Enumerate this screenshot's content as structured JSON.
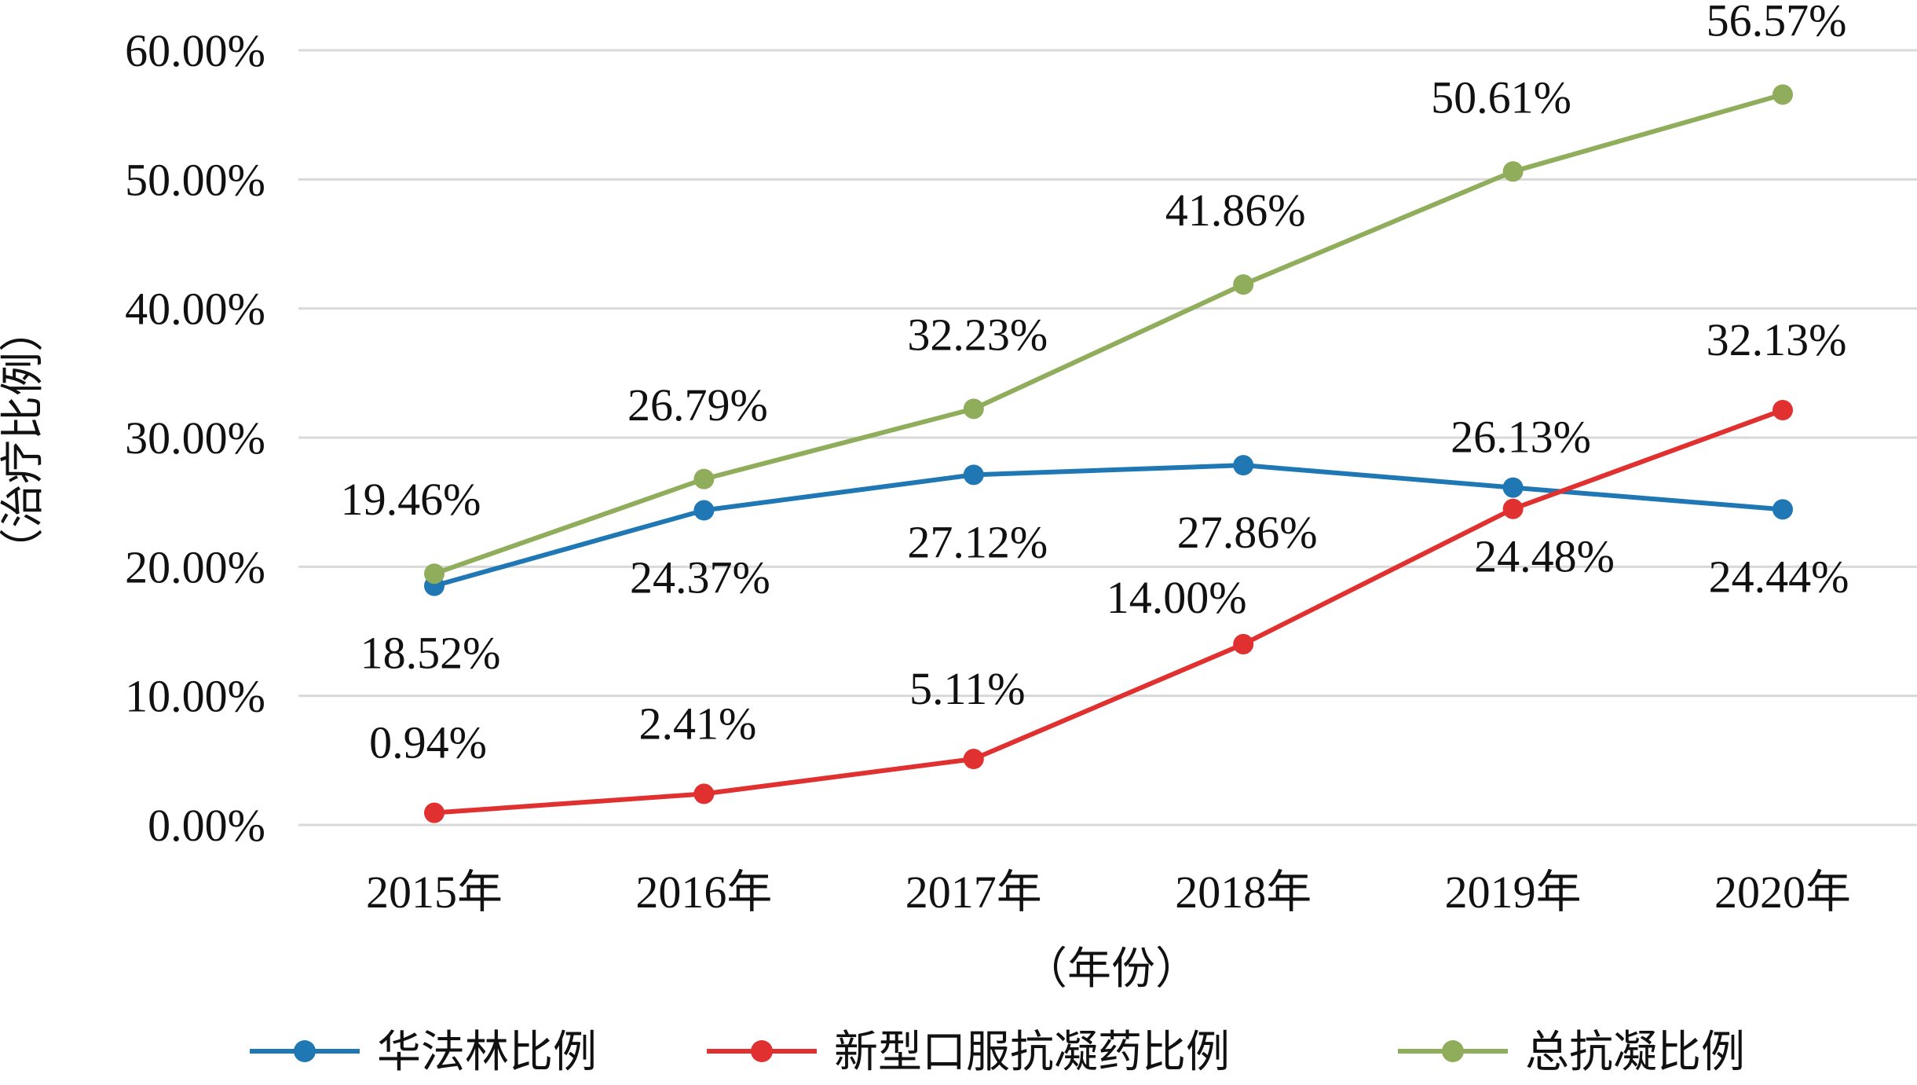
{
  "chart_data": {
    "type": "line",
    "categories": [
      "2015年",
      "2016年",
      "2017年",
      "2018年",
      "2019年",
      "2020年"
    ],
    "xlabel": "（年份）",
    "ylabel": "（治疗比例）",
    "ylim": [
      0,
      60
    ],
    "yticks": [
      "0.00%",
      "10.00%",
      "20.00%",
      "30.00%",
      "40.00%",
      "50.00%",
      "60.00%"
    ],
    "grid": true,
    "legend_position": "bottom",
    "series": [
      {
        "name": "华法林比例",
        "color": "#1f77b4",
        "values": [
          18.52,
          24.37,
          27.12,
          27.86,
          26.13,
          24.44
        ],
        "labels": [
          "18.52%",
          "24.37%",
          "27.12%",
          "27.86%",
          "26.13%",
          "24.44%"
        ]
      },
      {
        "name": "新型口服抗凝药比例",
        "color": "#e03030",
        "values": [
          0.94,
          2.41,
          5.11,
          14.0,
          24.48,
          32.13
        ],
        "labels": [
          "0.94%",
          "2.41%",
          "5.11%",
          "14.00%",
          "24.48%",
          "32.13%"
        ]
      },
      {
        "name": "总抗凝比例",
        "color": "#8fad5a",
        "values": [
          19.46,
          26.79,
          32.23,
          41.86,
          50.61,
          56.57
        ],
        "labels": [
          "19.46%",
          "26.79%",
          "32.23%",
          "41.86%",
          "50.61%",
          "56.57%"
        ]
      }
    ]
  }
}
